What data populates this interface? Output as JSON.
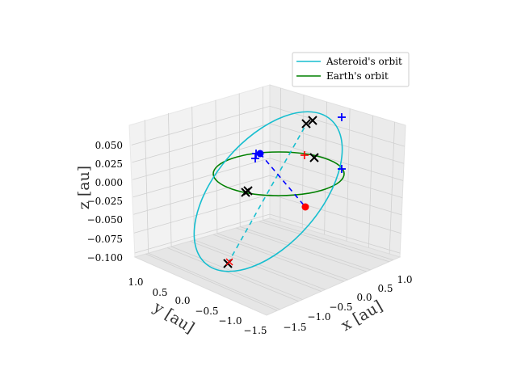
{
  "chart_data": {
    "type": "line",
    "projection": "3d",
    "axes": {
      "x": {
        "label": "x [au]",
        "ticks": [
          "−1.5",
          "−1.0",
          "−0.5",
          "0.0",
          "0.5",
          "1.0"
        ],
        "range": [
          -1.6,
          1.2
        ]
      },
      "y": {
        "label": "y [au]",
        "ticks": [
          "1.0",
          "0.5",
          "0.0",
          "−0.5",
          "−1.0",
          "−1.5"
        ],
        "range": [
          -1.6,
          1.2
        ]
      },
      "z": {
        "label": "z [au]",
        "ticks": [
          "0.050",
          "0.025",
          "0.000",
          "−0.025",
          "−0.050",
          "−0.075",
          "−0.100"
        ],
        "range": [
          -0.1,
          0.06
        ]
      }
    },
    "grid": true,
    "legend": {
      "placement": "upper-right",
      "entries": [
        {
          "name": "Asteroid's orbit",
          "color": "#17becf"
        },
        {
          "name": "Earth's orbit",
          "color": "#008000"
        }
      ]
    },
    "series": [
      {
        "name": "Asteroid's orbit",
        "color": "#17becf",
        "style": "solid"
      },
      {
        "name": "Earth's orbit",
        "color": "#008000",
        "style": "solid"
      }
    ]
  },
  "colors": {
    "asteroid": "#17becf",
    "earth": "#008000",
    "blue_marker": "#0000ff",
    "red_marker": "#ff0000",
    "black_marker": "#000000"
  }
}
